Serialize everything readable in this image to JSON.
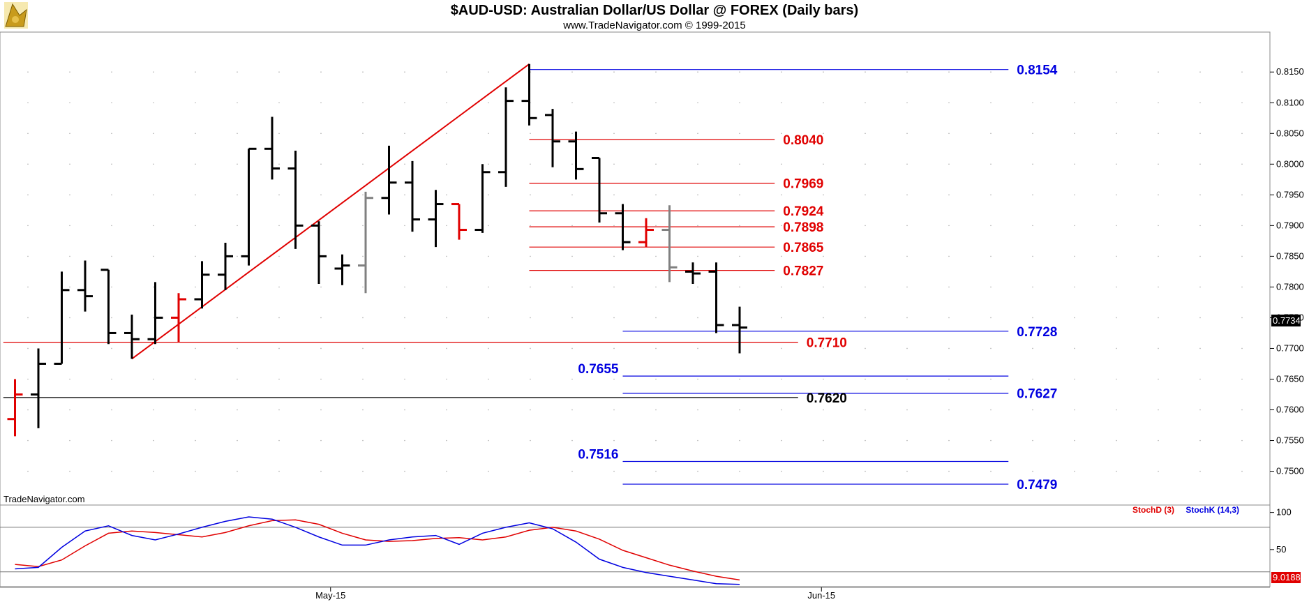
{
  "chart_data": {
    "type": "ohlc",
    "title": "$AUD-USD:  Australian Dollar/US Dollar @ FOREX  (Daily bars)",
    "subtitle": "www.TradeNavigator.com © 1999-2015",
    "watermark": "TradeNavigator.com",
    "ylim": [
      0.7445,
      0.8215
    ],
    "y_ticks": [
      "0.8150",
      "0.8100",
      "0.8050",
      "0.8000",
      "0.7950",
      "0.7900",
      "0.7850",
      "0.7800",
      "0.7750",
      "0.7700",
      "0.7650",
      "0.7600",
      "0.7550",
      "0.7500"
    ],
    "x_labels": [
      {
        "label": "May-15",
        "index": 13.5
      },
      {
        "label": "Jun-15",
        "index": 34.5
      }
    ],
    "current_price": "0.7734",
    "bars": [
      {
        "o": 0.7585,
        "h": 0.765,
        "l": 0.7557,
        "c": 0.7625,
        "color": "#e00000"
      },
      {
        "o": 0.7625,
        "h": 0.77,
        "l": 0.757,
        "c": 0.7675,
        "color": "#000000"
      },
      {
        "o": 0.7675,
        "h": 0.7825,
        "l": 0.7675,
        "c": 0.7795,
        "color": "#000000"
      },
      {
        "o": 0.7795,
        "h": 0.7843,
        "l": 0.776,
        "c": 0.7785,
        "color": "#000000"
      },
      {
        "o": 0.7828,
        "h": 0.7828,
        "l": 0.7707,
        "c": 0.7725,
        "color": "#000000"
      },
      {
        "o": 0.7725,
        "h": 0.7755,
        "l": 0.7683,
        "c": 0.7715,
        "color": "#000000"
      },
      {
        "o": 0.7715,
        "h": 0.7808,
        "l": 0.7707,
        "c": 0.775,
        "color": "#000000"
      },
      {
        "o": 0.775,
        "h": 0.779,
        "l": 0.771,
        "c": 0.778,
        "color": "#e00000"
      },
      {
        "o": 0.778,
        "h": 0.7842,
        "l": 0.7765,
        "c": 0.782,
        "color": "#000000"
      },
      {
        "o": 0.782,
        "h": 0.7872,
        "l": 0.7795,
        "c": 0.785,
        "color": "#000000"
      },
      {
        "o": 0.785,
        "h": 0.8025,
        "l": 0.7835,
        "c": 0.8025,
        "color": "#000000"
      },
      {
        "o": 0.8025,
        "h": 0.8077,
        "l": 0.7975,
        "c": 0.7993,
        "color": "#000000"
      },
      {
        "o": 0.7993,
        "h": 0.8022,
        "l": 0.7862,
        "c": 0.79,
        "color": "#000000"
      },
      {
        "o": 0.79,
        "h": 0.7907,
        "l": 0.7805,
        "c": 0.785,
        "color": "#000000"
      },
      {
        "o": 0.783,
        "h": 0.7853,
        "l": 0.7803,
        "c": 0.7835,
        "color": "#000000"
      },
      {
        "o": 0.7835,
        "h": 0.7955,
        "l": 0.779,
        "c": 0.7945,
        "color": "#808080"
      },
      {
        "o": 0.7945,
        "h": 0.803,
        "l": 0.7918,
        "c": 0.797,
        "color": "#000000"
      },
      {
        "o": 0.797,
        "h": 0.8005,
        "l": 0.789,
        "c": 0.791,
        "color": "#000000"
      },
      {
        "o": 0.791,
        "h": 0.7958,
        "l": 0.7865,
        "c": 0.7935,
        "color": "#000000"
      },
      {
        "o": 0.7935,
        "h": 0.7935,
        "l": 0.7877,
        "c": 0.7893,
        "color": "#e00000"
      },
      {
        "o": 0.7893,
        "h": 0.8,
        "l": 0.7888,
        "c": 0.7987,
        "color": "#000000"
      },
      {
        "o": 0.7987,
        "h": 0.8125,
        "l": 0.7963,
        "c": 0.8103,
        "color": "#000000"
      },
      {
        "o": 0.8103,
        "h": 0.8163,
        "l": 0.8063,
        "c": 0.8075,
        "color": "#000000"
      },
      {
        "o": 0.808,
        "h": 0.809,
        "l": 0.7995,
        "c": 0.8037,
        "color": "#000000"
      },
      {
        "o": 0.8037,
        "h": 0.8053,
        "l": 0.7975,
        "c": 0.7992,
        "color": "#000000"
      },
      {
        "o": 0.801,
        "h": 0.801,
        "l": 0.7905,
        "c": 0.792,
        "color": "#000000"
      },
      {
        "o": 0.792,
        "h": 0.7935,
        "l": 0.786,
        "c": 0.7873,
        "color": "#000000"
      },
      {
        "o": 0.7873,
        "h": 0.7912,
        "l": 0.7865,
        "c": 0.7893,
        "color": "#e00000"
      },
      {
        "o": 0.7893,
        "h": 0.7933,
        "l": 0.7808,
        "c": 0.7832,
        "color": "#808080"
      },
      {
        "o": 0.7825,
        "h": 0.784,
        "l": 0.7805,
        "c": 0.7822,
        "color": "#000000"
      },
      {
        "o": 0.7825,
        "h": 0.784,
        "l": 0.7725,
        "c": 0.7738,
        "color": "#000000"
      },
      {
        "o": 0.7738,
        "h": 0.7768,
        "l": 0.7692,
        "c": 0.7734,
        "color": "#000000"
      }
    ],
    "trendline": {
      "from": {
        "index": 5,
        "value": 0.7683
      },
      "to": {
        "index": 22,
        "value": 0.8163
      },
      "color": "#e00000"
    },
    "levels": [
      {
        "label": "0.8154",
        "value": 0.8154,
        "color": "#0000e0",
        "from_index": 22,
        "to_index": 42.5,
        "label_side": "right"
      },
      {
        "label": "0.8040",
        "value": 0.804,
        "color": "#e00000",
        "from_index": 22,
        "to_index": 32.5,
        "label_side": "right"
      },
      {
        "label": "0.7969",
        "value": 0.7969,
        "color": "#e00000",
        "from_index": 22,
        "to_index": 32.5,
        "label_side": "right"
      },
      {
        "label": "0.7924",
        "value": 0.7924,
        "color": "#e00000",
        "from_index": 22,
        "to_index": 32.5,
        "label_side": "right"
      },
      {
        "label": "0.7898",
        "value": 0.7898,
        "color": "#e00000",
        "from_index": 22,
        "to_index": 32.5,
        "label_side": "right"
      },
      {
        "label": "0.7865",
        "value": 0.7865,
        "color": "#e00000",
        "from_index": 22,
        "to_index": 32.5,
        "label_side": "right"
      },
      {
        "label": "0.7827",
        "value": 0.7827,
        "color": "#e00000",
        "from_index": 22,
        "to_index": 32.5,
        "label_side": "right"
      },
      {
        "label": "0.7728",
        "value": 0.7728,
        "color": "#0000e0",
        "from_index": 26,
        "to_index": 42.5,
        "label_side": "right"
      },
      {
        "label": "0.7710",
        "value": 0.771,
        "color": "#e00000",
        "from_index": -0.5,
        "to_index": 33.5,
        "label_side": "right"
      },
      {
        "label": "0.7655",
        "value": 0.7655,
        "color": "#0000e0",
        "from_index": 26,
        "to_index": 42.5,
        "label_side": "left"
      },
      {
        "label": "0.7627",
        "value": 0.7627,
        "color": "#0000e0",
        "from_index": 26,
        "to_index": 42.5,
        "label_side": "right"
      },
      {
        "label": "0.7620",
        "value": 0.762,
        "color": "#000000",
        "from_index": -0.5,
        "to_index": 33.5,
        "label_side": "right"
      },
      {
        "label": "0.7516",
        "value": 0.7516,
        "color": "#0000e0",
        "from_index": 26,
        "to_index": 42.5,
        "label_side": "left"
      },
      {
        "label": "0.7479",
        "value": 0.7479,
        "color": "#0000e0",
        "from_index": 26,
        "to_index": 42.5,
        "label_side": "right"
      }
    ],
    "stochastic": {
      "ylim": [
        0,
        110
      ],
      "y_ticks": [
        "100",
        "50"
      ],
      "reference_lines": [
        80,
        20
      ],
      "last_value": "9.0188",
      "series": [
        {
          "name": "StochD (3)",
          "color": "#e00000",
          "values": [
            30,
            27,
            36,
            55,
            72,
            75,
            73,
            70,
            67,
            73,
            82,
            89,
            90,
            84,
            72,
            63,
            61,
            62,
            65,
            66,
            63,
            67,
            76,
            80,
            75,
            64,
            49,
            39,
            29,
            21,
            14,
            9
          ]
        },
        {
          "name": "StochK (14,3)",
          "color": "#0000e0",
          "values": [
            24,
            26,
            53,
            75,
            82,
            69,
            63,
            71,
            80,
            88,
            94,
            91,
            80,
            67,
            56,
            56,
            63,
            67,
            69,
            57,
            72,
            80,
            86,
            78,
            60,
            37,
            26,
            19,
            14,
            9,
            4,
            3
          ]
        }
      ]
    }
  }
}
